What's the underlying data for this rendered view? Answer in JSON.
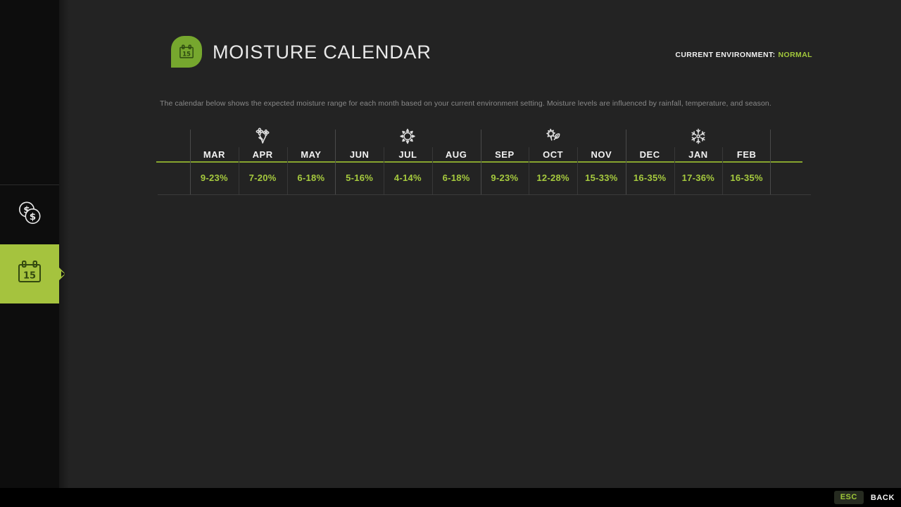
{
  "header": {
    "title": "MOISTURE CALENDAR",
    "environment_label": "CURRENT ENVIRONMENT:",
    "environment_value": "NORMAL"
  },
  "description": "The calendar below shows the expected moisture range for each month based on your current environment setting. Moisture levels are influenced by rainfall, temperature, and season.",
  "calendar": {
    "seasons": [
      {
        "name": "spring",
        "icon": "flowers-icon",
        "months": [
          {
            "label": "MAR",
            "range": "9-23%"
          },
          {
            "label": "APR",
            "range": "7-20%"
          },
          {
            "label": "MAY",
            "range": "6-18%"
          }
        ]
      },
      {
        "name": "summer",
        "icon": "sun-icon",
        "months": [
          {
            "label": "JUN",
            "range": "5-16%"
          },
          {
            "label": "JUL",
            "range": "4-14%"
          },
          {
            "label": "AUG",
            "range": "6-18%"
          }
        ]
      },
      {
        "name": "autumn",
        "icon": "leaves-icon",
        "months": [
          {
            "label": "SEP",
            "range": "9-23%"
          },
          {
            "label": "OCT",
            "range": "12-28%"
          },
          {
            "label": "NOV",
            "range": "15-33%"
          }
        ]
      },
      {
        "name": "winter",
        "icon": "snowflake-icon",
        "months": [
          {
            "label": "DEC",
            "range": "16-35%"
          },
          {
            "label": "JAN",
            "range": "17-36%"
          },
          {
            "label": "FEB",
            "range": "16-35%"
          }
        ]
      }
    ]
  },
  "sidebar": {
    "items": [
      {
        "id": "economy",
        "icon": "coins-icon",
        "selected": false
      },
      {
        "id": "calendar",
        "icon": "calendar-icon",
        "selected": true
      }
    ]
  },
  "footer": {
    "esc_key": "ESC",
    "back_label": "BACK"
  },
  "colors": {
    "accent_text": "#a2c83b",
    "accent_selected": "#a5c33e",
    "header_icon": "#76a72e",
    "table_line": "#87a52e",
    "background": "#232323",
    "sidebar_background": "#0d0d0d",
    "bottom_bar": "#000000"
  }
}
